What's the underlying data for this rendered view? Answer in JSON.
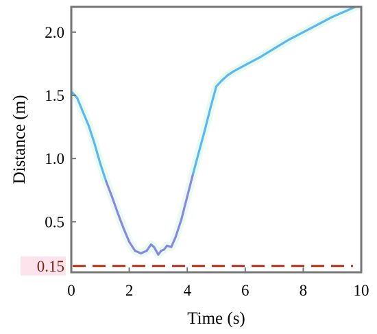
{
  "chart_data": {
    "type": "line",
    "xlabel": "Time (s)",
    "ylabel": "Distance (m)",
    "xlim": [
      0,
      10
    ],
    "ylim": [
      0.1,
      2.2
    ],
    "x_ticks": [
      0,
      2,
      4,
      6,
      8,
      10
    ],
    "x_tick_labels": [
      "0",
      "2",
      "4",
      "6",
      "8",
      "10"
    ],
    "y_ticks": [
      0.5,
      1.0,
      1.5,
      2.0
    ],
    "y_tick_labels": [
      "0.5",
      "1.0",
      "1.5",
      "2.0"
    ],
    "grid": false,
    "series": [
      {
        "color_main": "#5ab8ee",
        "color_low": "#8a86e2",
        "x": [
          0.0,
          0.2,
          0.4,
          0.6,
          0.8,
          1.0,
          1.2,
          1.4,
          1.6,
          1.8,
          2.0,
          2.2,
          2.4,
          2.6,
          2.75,
          2.85,
          3.0,
          3.1,
          3.2,
          3.3,
          3.45,
          3.6,
          3.8,
          4.0,
          4.2,
          4.4,
          4.6,
          4.8,
          5.0,
          5.2,
          5.4,
          5.6,
          6.0,
          6.5,
          7.0,
          7.5,
          8.0,
          8.5,
          9.0,
          9.5,
          10.0
        ],
        "y": [
          1.53,
          1.48,
          1.37,
          1.26,
          1.12,
          0.96,
          0.82,
          0.7,
          0.57,
          0.45,
          0.34,
          0.27,
          0.25,
          0.27,
          0.32,
          0.3,
          0.24,
          0.27,
          0.28,
          0.31,
          0.3,
          0.38,
          0.52,
          0.7,
          0.88,
          1.05,
          1.22,
          1.4,
          1.57,
          1.62,
          1.66,
          1.69,
          1.74,
          1.8,
          1.87,
          1.94,
          2.0,
          2.06,
          2.12,
          2.17,
          2.22
        ]
      }
    ],
    "threshold": {
      "value": 0.15,
      "label": "0.15",
      "color": "#b23118",
      "label_bg": "#fde3ec",
      "style": "dashed"
    }
  }
}
